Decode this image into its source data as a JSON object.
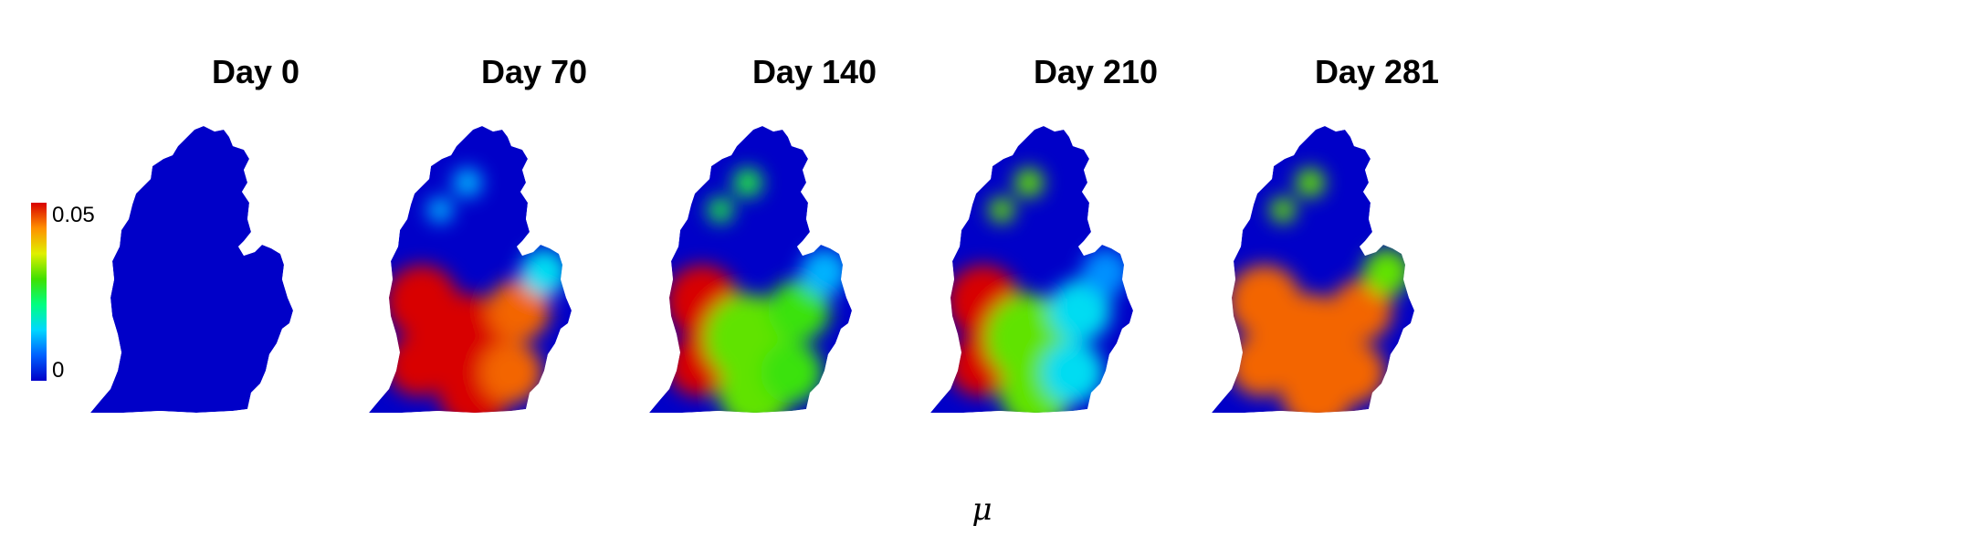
{
  "chart_data": {
    "type": "heatmap",
    "xlabel": "μ",
    "colorbar": {
      "min": 0,
      "max": 0.05,
      "min_label": "0",
      "max_label": "0.05",
      "colormap": [
        "#0000c8",
        "#0060ff",
        "#00d8ff",
        "#00ff80",
        "#40e000",
        "#e0f000",
        "#ff9000",
        "#d80000"
      ]
    },
    "panels": [
      {
        "title": "Day 0",
        "day": 0,
        "background_value": 0.0,
        "hotspots": []
      },
      {
        "title": "Day 70",
        "day": 70,
        "background_value": 0.0,
        "hotspots": [
          {
            "region": "upper-peninsula",
            "value": 0.012
          },
          {
            "region": "southwest",
            "value": 0.05
          },
          {
            "region": "south-central",
            "value": 0.05
          },
          {
            "region": "southeast",
            "value": 0.045
          },
          {
            "region": "thumb",
            "value": 0.015
          }
        ]
      },
      {
        "title": "Day 140",
        "day": 140,
        "background_value": 0.0,
        "hotspots": [
          {
            "region": "upper-peninsula",
            "value": 0.025
          },
          {
            "region": "southwest",
            "value": 0.05
          },
          {
            "region": "south-central",
            "value": 0.03
          },
          {
            "region": "southeast",
            "value": 0.028
          },
          {
            "region": "thumb",
            "value": 0.012
          }
        ]
      },
      {
        "title": "Day 210",
        "day": 210,
        "background_value": 0.0,
        "hotspots": [
          {
            "region": "upper-peninsula",
            "value": 0.03
          },
          {
            "region": "southwest",
            "value": 0.05
          },
          {
            "region": "south-central",
            "value": 0.03
          },
          {
            "region": "southeast",
            "value": 0.015
          },
          {
            "region": "thumb",
            "value": 0.01
          }
        ]
      },
      {
        "title": "Day 281",
        "day": 281,
        "background_value": 0.0,
        "hotspots": [
          {
            "region": "upper-peninsula",
            "value": 0.03
          },
          {
            "region": "southwest",
            "value": 0.045
          },
          {
            "region": "south-central",
            "value": 0.045
          },
          {
            "region": "southeast",
            "value": 0.045
          },
          {
            "region": "thumb",
            "value": 0.03
          }
        ]
      }
    ]
  }
}
